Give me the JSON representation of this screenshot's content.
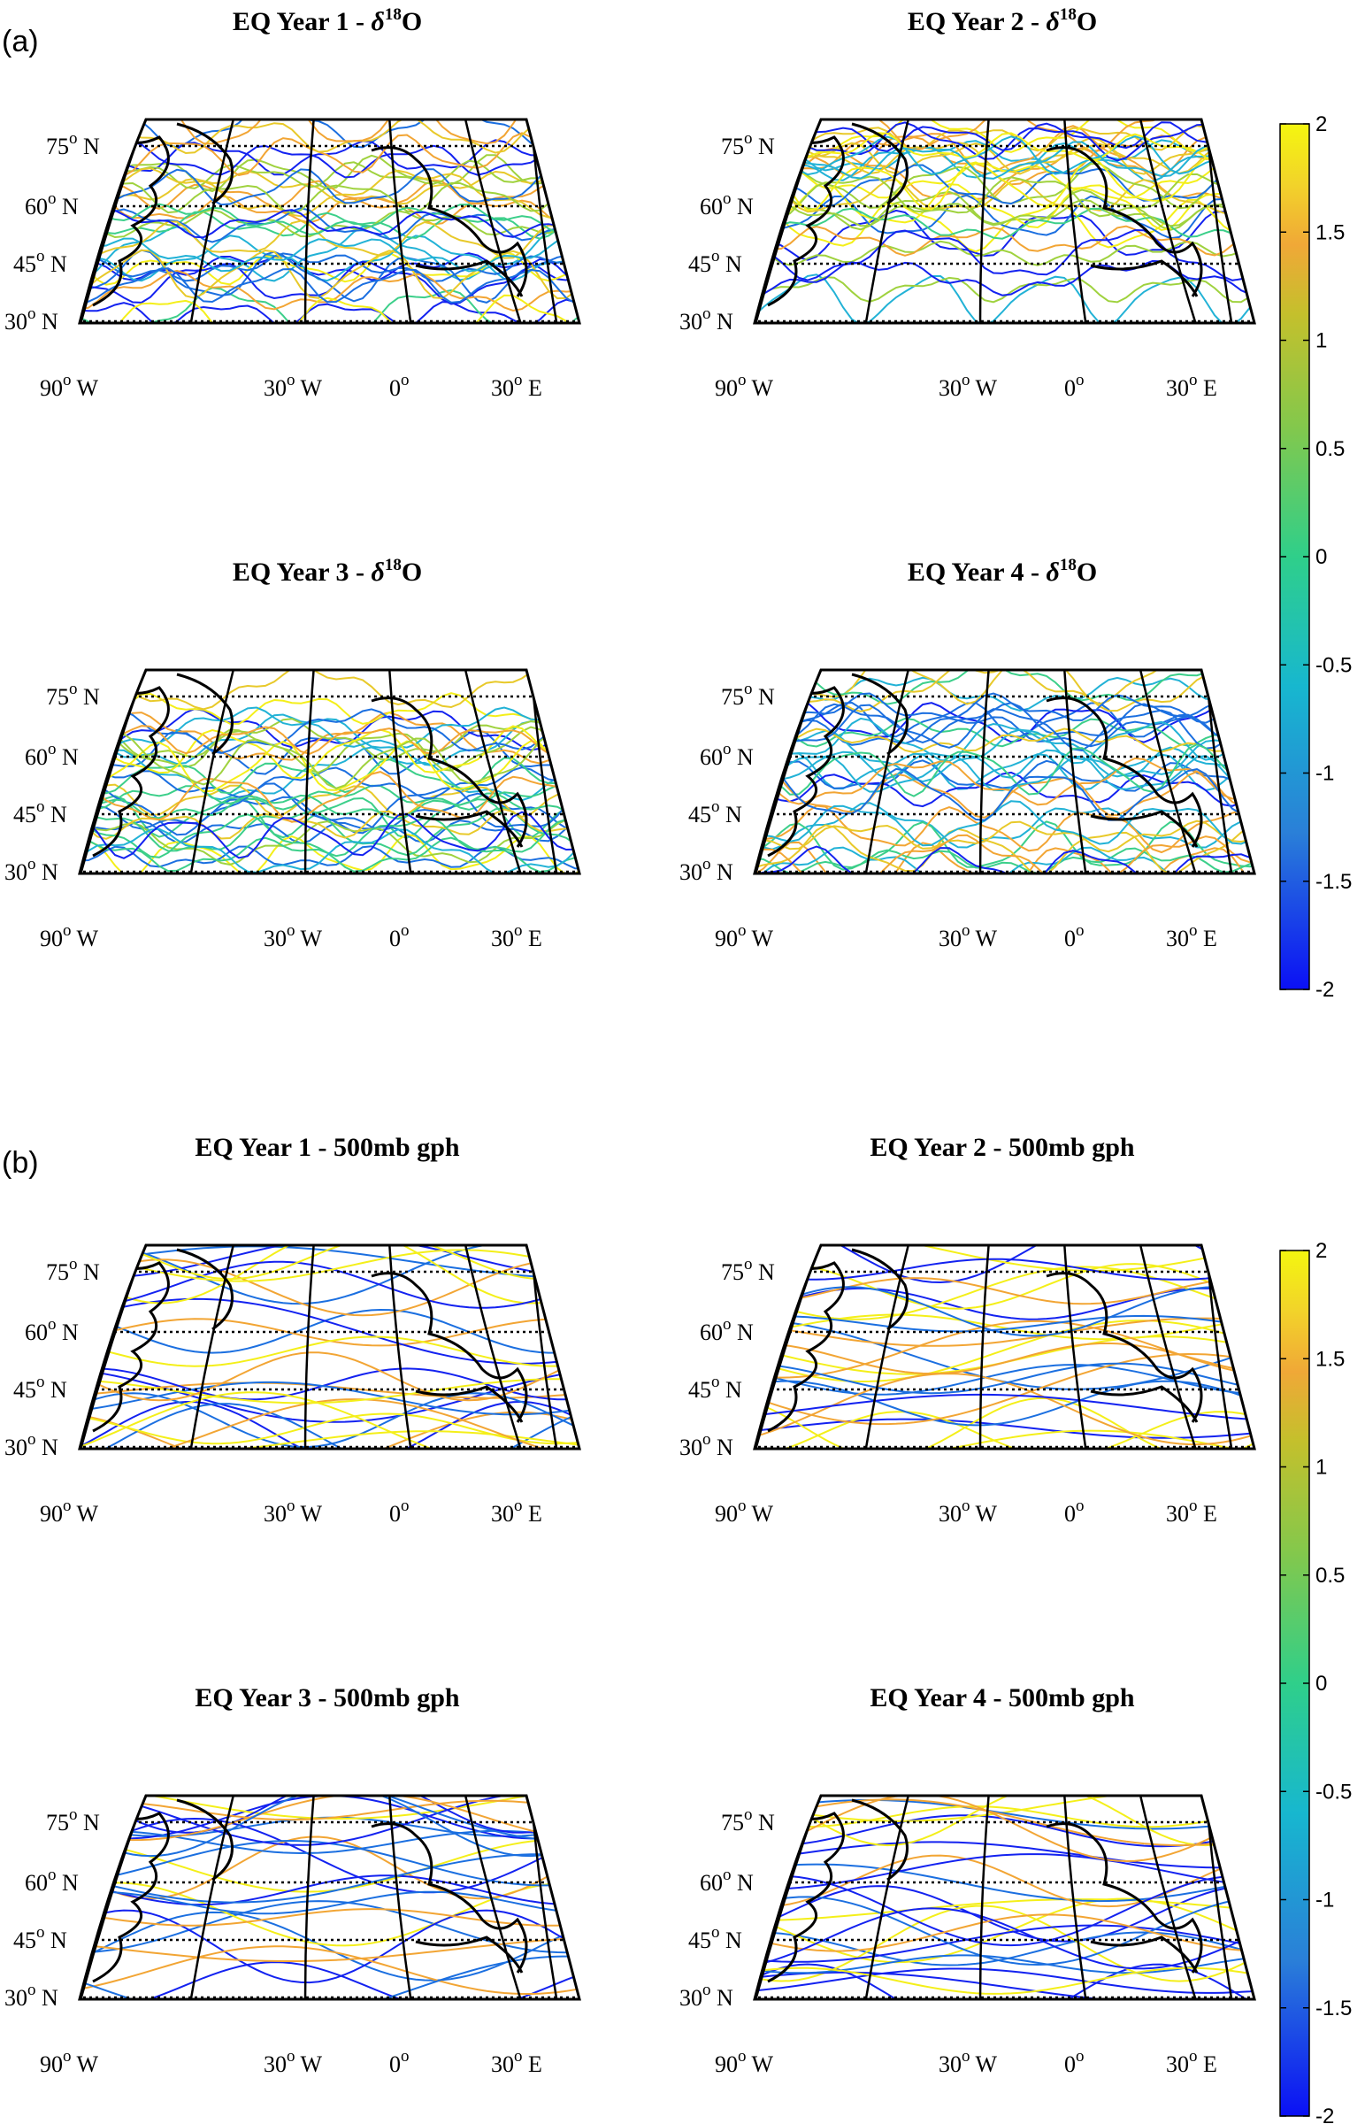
{
  "section_a": {
    "label": "(a)",
    "maps": [
      {
        "title_prefix": "EQ Year 1 - ",
        "title_symbol": "δ",
        "title_sup": "18",
        "title_suffix": "O"
      },
      {
        "title_prefix": "EQ Year 2 - ",
        "title_symbol": "δ",
        "title_sup": "18",
        "title_suffix": "O"
      },
      {
        "title_prefix": "EQ Year 3 - ",
        "title_symbol": "δ",
        "title_sup": "18",
        "title_suffix": "O"
      },
      {
        "title_prefix": "EQ Year 4 - ",
        "title_symbol": "δ",
        "title_sup": "18",
        "title_suffix": "O"
      }
    ]
  },
  "section_b": {
    "label": "(b)",
    "maps": [
      {
        "title_prefix": "EQ Year 1 - 500mb gph",
        "title_symbol": "",
        "title_sup": "",
        "title_suffix": ""
      },
      {
        "title_prefix": "EQ Year 2 - 500mb gph",
        "title_symbol": "",
        "title_sup": "",
        "title_suffix": ""
      },
      {
        "title_prefix": "EQ Year 3 - 500mb gph",
        "title_symbol": "",
        "title_sup": "",
        "title_suffix": ""
      },
      {
        "title_prefix": "EQ Year 4 - 500mb gph",
        "title_symbol": "",
        "title_sup": "",
        "title_suffix": ""
      }
    ]
  },
  "lat_labels": [
    {
      "value": "75",
      "deg": "o",
      "hemi": "N"
    },
    {
      "value": "60",
      "deg": "o",
      "hemi": "N"
    },
    {
      "value": "45",
      "deg": "o",
      "hemi": "N"
    },
    {
      "value": "30",
      "deg": "o",
      "hemi": "N"
    }
  ],
  "lon_labels": [
    {
      "value": "90",
      "deg": "o",
      "hemi": "W"
    },
    {
      "value": "30",
      "deg": "o",
      "hemi": "W"
    },
    {
      "value": "0",
      "deg": "o",
      "hemi": ""
    },
    {
      "value": "30",
      "deg": "o",
      "hemi": "E"
    }
  ],
  "colorbar": {
    "ticks": [
      "2",
      "1.5",
      "1",
      "0.5",
      "0",
      "-0.5",
      "-1",
      "-1.5",
      "-2"
    ],
    "min": -2,
    "max": 2,
    "colors": [
      "#0b10f5",
      "#2a7fd8",
      "#17b7cf",
      "#2fcf8a",
      "#83c84c",
      "#c4c02c",
      "#f0a837",
      "#f2d32a",
      "#f4f60f"
    ]
  }
}
